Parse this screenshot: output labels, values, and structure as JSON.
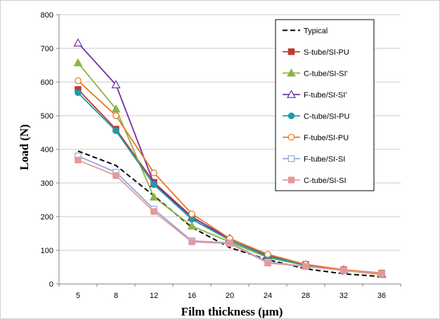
{
  "chart_data": {
    "type": "line",
    "title": "",
    "xlabel": "Film thickness (µm)",
    "ylabel": "Load (N)",
    "categories": [
      "5",
      "8",
      "12",
      "16",
      "20",
      "24",
      "28",
      "32",
      "36"
    ],
    "ylim": [
      0,
      800
    ],
    "yticks": [
      "0",
      "100",
      "200",
      "300",
      "400",
      "500",
      "600",
      "700",
      "800"
    ],
    "grid": "horizontal",
    "legend_position": "top-right",
    "series": [
      {
        "name": "Typical",
        "color": "#000000",
        "dashed": true,
        "marker": "none",
        "values": [
          395,
          352,
          262,
          168,
          108,
          72,
          45,
          30,
          22
        ]
      },
      {
        "name": "S-tube/SI-PU",
        "color": "#C0392B",
        "marker": "square",
        "values": [
          578,
          460,
          302,
          200,
          130,
          80,
          58,
          42,
          32
        ]
      },
      {
        "name": "C-tube/SI-SI'",
        "color": "#8DB443",
        "marker": "triangle",
        "values": [
          657,
          520,
          258,
          172,
          125,
          78,
          55,
          40,
          28
        ]
      },
      {
        "name": "F-tube/SI-SI'",
        "color": "#7030A0",
        "marker": "triangle-open",
        "values": [
          716,
          592,
          298,
          198,
          135,
          85,
          57,
          42,
          30
        ]
      },
      {
        "name": "C-tube/SI-PU",
        "color": "#1E9AA8",
        "marker": "circle",
        "values": [
          568,
          455,
          295,
          192,
          130,
          82,
          55,
          40,
          30
        ]
      },
      {
        "name": "F-tube/SI-PU",
        "color": "#E87722",
        "marker": "circle-open",
        "values": [
          604,
          500,
          330,
          208,
          135,
          88,
          58,
          42,
          32
        ]
      },
      {
        "name": "F-tube/SI-SI",
        "color": "#8EA9DB",
        "marker": "square-open",
        "values": [
          380,
          332,
          222,
          128,
          122,
          65,
          52,
          40,
          30
        ]
      },
      {
        "name": "C-tube/SI-SI",
        "color": "#E6999B",
        "marker": "square",
        "values": [
          368,
          322,
          215,
          125,
          120,
          62,
          52,
          40,
          30
        ]
      }
    ]
  }
}
